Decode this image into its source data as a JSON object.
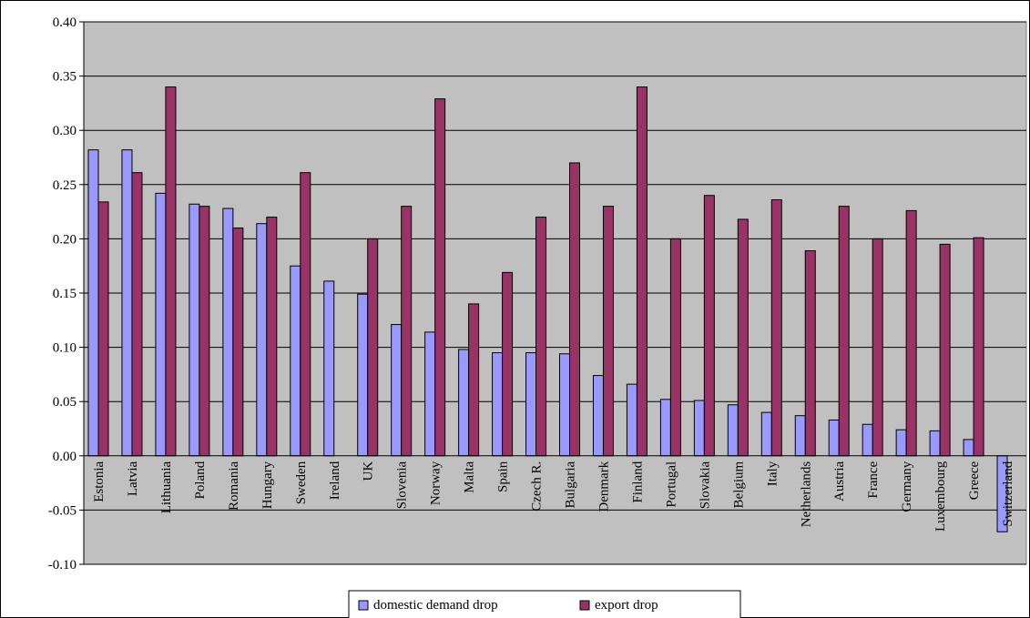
{
  "chart_data": {
    "type": "bar",
    "categories": [
      "Estonia",
      "Latvia",
      "Lithuania",
      "Poland",
      "Romania",
      "Hungary",
      "Sweden",
      "Ireland",
      "UK",
      "Slovenia",
      "Norway",
      "Malta",
      "Spain",
      "Czech R.",
      "Bulgaria",
      "Denmark",
      "Finland",
      "Portugal",
      "Slovakia",
      "Belgium",
      "Italy",
      "Netherlands",
      "Austria",
      "France",
      "Germany",
      "Luxembourg",
      "Greece",
      "Switzerland"
    ],
    "series": [
      {
        "name": "domestic demand drop",
        "color": "#9999ff",
        "values": [
          0.282,
          0.282,
          0.242,
          0.232,
          0.228,
          0.214,
          0.175,
          0.161,
          0.149,
          0.121,
          0.114,
          0.098,
          0.095,
          0.095,
          0.094,
          0.074,
          0.066,
          0.052,
          0.051,
          0.047,
          0.04,
          0.037,
          0.033,
          0.029,
          0.024,
          0.023,
          0.015,
          -0.07
        ]
      },
      {
        "name": "export drop",
        "color": "#993366",
        "values": [
          0.234,
          0.261,
          0.34,
          0.23,
          0.21,
          0.22,
          0.261,
          null,
          0.2,
          0.23,
          0.329,
          0.14,
          0.169,
          0.22,
          0.27,
          0.23,
          0.34,
          0.2,
          0.24,
          0.218,
          0.236,
          0.189,
          0.23,
          0.2,
          0.226,
          0.195,
          0.201,
          null
        ]
      }
    ],
    "title": "",
    "xlabel": "",
    "ylabel": "",
    "ylim": [
      -0.1,
      0.4
    ],
    "yticks": [
      "-0.10",
      "-0.05",
      "0.00",
      "0.05",
      "0.10",
      "0.15",
      "0.20",
      "0.25",
      "0.30",
      "0.35",
      "0.40"
    ],
    "grid": true,
    "plot_background": "#c0c0c0",
    "legend_placement": "bottom"
  }
}
